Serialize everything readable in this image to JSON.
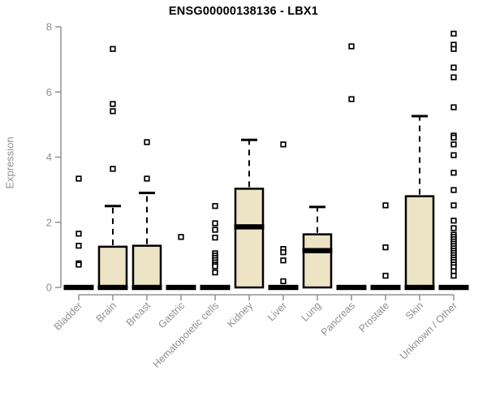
{
  "window": {
    "background": "#ffffff"
  },
  "chart_data": {
    "type": "boxplot",
    "title": "ENSG00000138136 - LBX1",
    "ylabel": "Expression",
    "xlabel": "",
    "ylim": [
      0,
      8
    ],
    "yticks": [
      0,
      2,
      4,
      6,
      8
    ],
    "grid": false,
    "legend": "none",
    "x_label_rotation": 45,
    "categories": [
      "Bladder",
      "Brain",
      "Breast",
      "Gastric",
      "Hematopoietic cells",
      "Kidney",
      "Liver",
      "Lung",
      "Pancreas",
      "Prostate",
      "Skin",
      "Unknown / Other"
    ],
    "boxes": [
      {
        "category": "Bladder",
        "q1": 0,
        "median": 0,
        "q3": 0,
        "whisker_low": 0,
        "whisker_high": 0,
        "outliers": [
          3.34,
          1.65,
          1.28,
          0.74,
          0.7
        ]
      },
      {
        "category": "Brain",
        "q1": 0,
        "median": 0,
        "q3": 1.25,
        "whisker_low": 0,
        "whisker_high": 2.5,
        "outliers": [
          7.32,
          5.63,
          5.41,
          3.64
        ]
      },
      {
        "category": "Breast",
        "q1": 0,
        "median": 0,
        "q3": 1.28,
        "whisker_low": 0,
        "whisker_high": 2.9,
        "outliers": [
          4.46,
          3.34
        ]
      },
      {
        "category": "Gastric",
        "q1": 0,
        "median": 0,
        "q3": 0,
        "whisker_low": 0,
        "whisker_high": 0,
        "outliers": [
          1.55
        ]
      },
      {
        "category": "Hematopoietic cells",
        "q1": 0,
        "median": 0,
        "q3": 0,
        "whisker_low": 0,
        "whisker_high": 0,
        "outliers": [
          2.5,
          1.97,
          1.77,
          1.53,
          1.05,
          0.98,
          0.91,
          0.84,
          0.77,
          0.7,
          0.65,
          0.46
        ]
      },
      {
        "category": "Kidney",
        "q1": 0,
        "median": 1.86,
        "q3": 3.03,
        "whisker_low": 0,
        "whisker_high": 4.53,
        "outliers": []
      },
      {
        "category": "Liver",
        "q1": 0,
        "median": 0,
        "q3": 0,
        "whisker_low": 0,
        "whisker_high": 0,
        "outliers": [
          4.39,
          1.18,
          1.08,
          0.83,
          0.19
        ]
      },
      {
        "category": "Lung",
        "q1": 0,
        "median": 1.13,
        "q3": 1.63,
        "whisker_low": 0,
        "whisker_high": 2.47,
        "outliers": []
      },
      {
        "category": "Pancreas",
        "q1": 0,
        "median": 0,
        "q3": 0,
        "whisker_low": 0,
        "whisker_high": 0,
        "outliers": [
          7.4,
          5.78
        ]
      },
      {
        "category": "Prostate",
        "q1": 0,
        "median": 0,
        "q3": 0,
        "whisker_low": 0,
        "whisker_high": 0,
        "outliers": [
          2.52,
          1.23,
          0.36
        ]
      },
      {
        "category": "Skin",
        "q1": 0,
        "median": 0,
        "q3": 2.8,
        "whisker_low": 0,
        "whisker_high": 5.26,
        "outliers": []
      },
      {
        "category": "Unknown / Other",
        "q1": 0,
        "median": 0,
        "q3": 0,
        "whisker_low": 0,
        "whisker_high": 0,
        "outliers": [
          7.79,
          7.45,
          7.32,
          6.75,
          6.45,
          5.53,
          4.66,
          4.6,
          4.39,
          4.06,
          3.52,
          2.99,
          2.52,
          2.05,
          1.82,
          1.62,
          1.55,
          1.48,
          1.41,
          1.34,
          1.27,
          1.2,
          1.13,
          1.06,
          0.99,
          0.92,
          0.85,
          0.78,
          0.7,
          0.62,
          0.5,
          0.36
        ]
      }
    ],
    "style": {
      "box_fill": "#ece4c4",
      "box_border": "#000000",
      "median_color": "#000000",
      "whisker_color": "#000000",
      "outlier_shape": "open-square",
      "outlier_color": "#000000",
      "axis_color": "#909090",
      "label_color": "#8f8f8f",
      "title_color": "#000000"
    }
  }
}
